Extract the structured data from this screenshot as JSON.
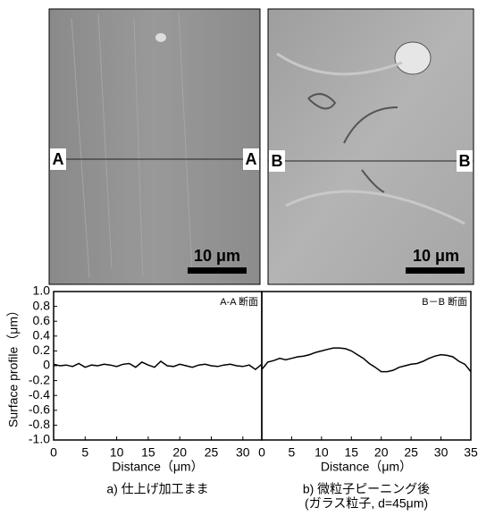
{
  "images": [
    {
      "left_label": "A",
      "right_label": "A",
      "scale_bar": "10 μm"
    },
    {
      "left_label": "B",
      "right_label": "B",
      "scale_bar": "10 μm"
    }
  ],
  "chart_data": [
    {
      "type": "line",
      "ylabel": "Surface profile（μm）",
      "xlabel": "Distance（μm）",
      "annotation": "A-A 断面",
      "caption": "a) 仕上げ加工まま",
      "x": [
        0,
        1,
        2,
        3,
        4,
        5,
        6,
        7,
        8,
        9,
        10,
        11,
        12,
        13,
        14,
        15,
        16,
        17,
        18,
        19,
        20,
        21,
        22,
        23,
        24,
        25,
        26,
        27,
        28,
        29,
        30,
        31,
        32,
        33
      ],
      "series": [
        {
          "color": "#000000",
          "values": [
            0.02,
            0,
            0.01,
            -0.01,
            0.03,
            -0.02,
            0.01,
            0,
            0.02,
            0.01,
            -0.01,
            0.02,
            0.03,
            -0.02,
            0.05,
            0.01,
            -0.02,
            0.06,
            0,
            -0.01,
            0.02,
            0,
            -0.02,
            0.01,
            0.02,
            0,
            -0.01,
            0.01,
            0.02,
            0,
            -0.01,
            0.01,
            -0.05,
            0.02
          ]
        }
      ],
      "xlim": [
        0,
        33
      ],
      "xticks": [
        0,
        5,
        10,
        15,
        20,
        25,
        30
      ],
      "ylim": [
        -1,
        1
      ],
      "yticks": [
        {
          "value": 1,
          "label": "1.0"
        },
        0.8,
        0.6,
        0.4,
        0.2,
        0,
        -0.2,
        -0.4,
        -0.6,
        -0.8,
        {
          "value": -1,
          "label": "-1.0"
        }
      ]
    },
    {
      "type": "line",
      "xlabel": "Distance（μm）",
      "annotation": "B－B 断面",
      "caption": "b) 微粒子ピーニング後",
      "subcaption": "(ガラス粒子, d=45μm)",
      "x": [
        0,
        1,
        2,
        3,
        4,
        5,
        6,
        7,
        8,
        9,
        10,
        11,
        12,
        13,
        14,
        15,
        16,
        17,
        18,
        19,
        20,
        21,
        22,
        23,
        24,
        25,
        26,
        27,
        28,
        29,
        30,
        31,
        32,
        33,
        34,
        35
      ],
      "series": [
        {
          "color": "#000000",
          "values": [
            -0.05,
            0.05,
            0.07,
            0.1,
            0.08,
            0.1,
            0.12,
            0.13,
            0.15,
            0.18,
            0.2,
            0.22,
            0.24,
            0.24,
            0.23,
            0.2,
            0.15,
            0.1,
            0.03,
            -0.02,
            -0.08,
            -0.08,
            -0.06,
            -0.02,
            0,
            0.02,
            0.03,
            0.06,
            0.1,
            0.13,
            0.15,
            0.14,
            0.12,
            0.06,
            0.02,
            -0.08
          ]
        }
      ],
      "xlim": [
        0,
        35
      ],
      "xticks": [
        0,
        5,
        10,
        15,
        20,
        25,
        30,
        35
      ],
      "ylim": [
        -1,
        1
      ]
    }
  ]
}
